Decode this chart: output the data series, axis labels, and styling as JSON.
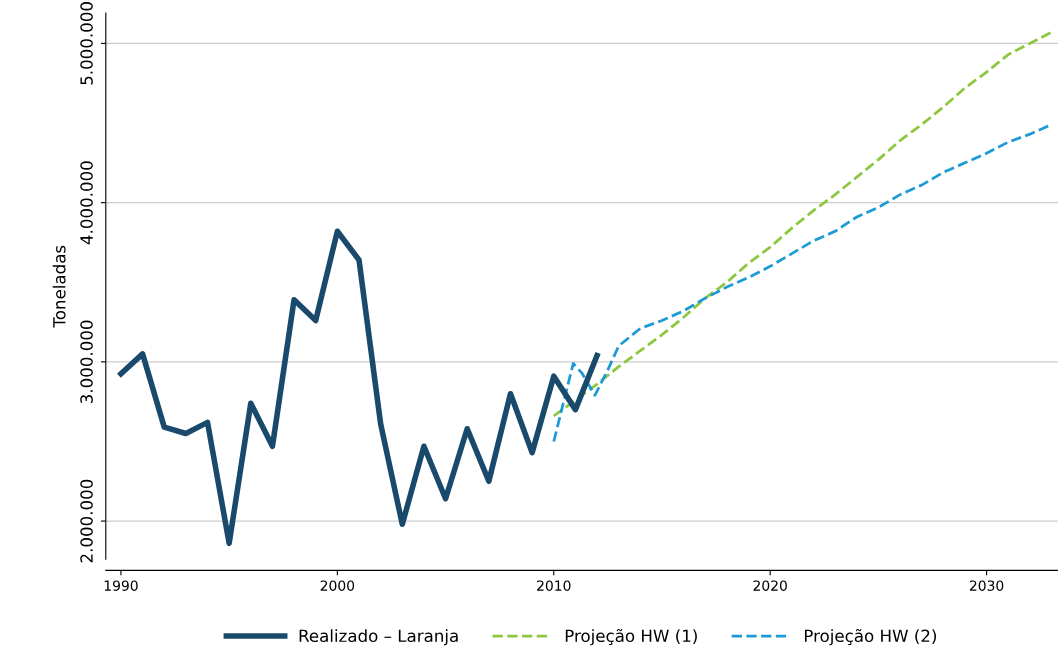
{
  "chart_data": {
    "type": "line",
    "ylabel": "Toneladas",
    "xlim": [
      1989.3,
      2033.3
    ],
    "xticks": [
      1990,
      2000,
      2010,
      2020,
      2030
    ],
    "ylim": [
      1760000,
      5190000
    ],
    "yticks": [
      {
        "value": 2000000,
        "label": "2.000.000"
      },
      {
        "value": 3000000,
        "label": "3.000.000"
      },
      {
        "value": 4000000,
        "label": "4.000.000"
      },
      {
        "value": 5000000,
        "label": "5.000.000"
      }
    ],
    "grid": "y",
    "legend": "bottom",
    "marker": "none",
    "series": [
      {
        "name": "Realizado – Laranja",
        "color": "#1a4a6b",
        "line_style": "solid",
        "x": [
          1990,
          1991,
          1992,
          1993,
          1994,
          1995,
          1996,
          1997,
          1998,
          1999,
          2000,
          2001,
          2002,
          2003,
          2004,
          2005,
          2006,
          2007,
          2008,
          2009,
          2010,
          2011,
          2012
        ],
        "values": [
          2925000,
          3050000,
          2590000,
          2550000,
          2620000,
          1860000,
          2740000,
          2470000,
          3390000,
          3260000,
          3820000,
          3640000,
          2610000,
          1980000,
          2470000,
          2140000,
          2580000,
          2250000,
          2800000,
          2430000,
          2910000,
          2700000,
          3040000
        ]
      },
      {
        "name": "Projeção HW (1)",
        "color": "#8dc63f",
        "line_style": "dashed",
        "x": [
          2010,
          2011,
          2012,
          2013,
          2014,
          2015,
          2016,
          2017,
          2018,
          2019,
          2020,
          2021,
          2022,
          2023,
          2024,
          2025,
          2026,
          2027,
          2028,
          2029,
          2030,
          2031,
          2032,
          2033
        ],
        "values": [
          2660000,
          2760000,
          2860000,
          2970000,
          3070000,
          3170000,
          3280000,
          3400000,
          3500000,
          3620000,
          3720000,
          3840000,
          3950000,
          4050000,
          4160000,
          4270000,
          4390000,
          4490000,
          4600000,
          4720000,
          4820000,
          4930000,
          5000000,
          5070000
        ]
      },
      {
        "name": "Projeção HW (2)",
        "color": "#1e9ad6",
        "line_style": "dashed",
        "x": [
          2010,
          2010.9,
          2011.3,
          2011.9,
          2012.5,
          2013,
          2014,
          2015,
          2016,
          2017,
          2018,
          2019,
          2020,
          2021,
          2022,
          2023,
          2024,
          2025,
          2026,
          2027,
          2028,
          2029,
          2030,
          2031,
          2032,
          2033
        ],
        "values": [
          2500000,
          2990000,
          2930000,
          2790000,
          2950000,
          3100000,
          3210000,
          3260000,
          3320000,
          3400000,
          3470000,
          3530000,
          3600000,
          3680000,
          3760000,
          3820000,
          3910000,
          3970000,
          4050000,
          4110000,
          4190000,
          4250000,
          4310000,
          4380000,
          4430000,
          4490000
        ]
      }
    ]
  }
}
